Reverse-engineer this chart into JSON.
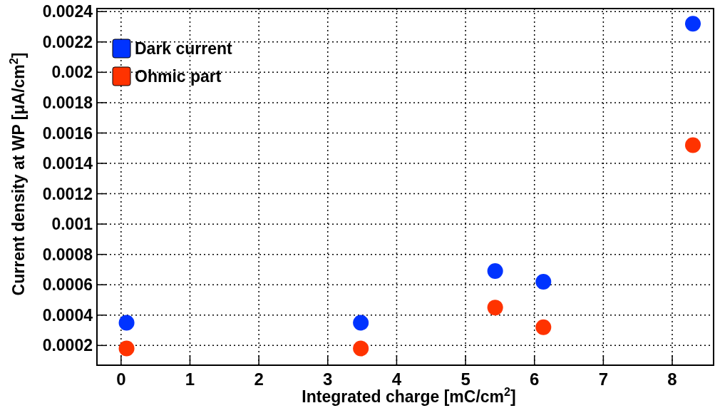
{
  "chart_data": {
    "type": "scatter",
    "xlabel": "Integrated charge [mC/cm$^{2}$]",
    "ylabel": "Current density at WP [μA/cm$^{2}$]",
    "xlim": [
      -0.35,
      8.6
    ],
    "xticks": [
      0,
      1,
      2,
      3,
      4,
      5,
      6,
      7,
      8
    ],
    "ylim": [
      7e-05,
      0.00242
    ],
    "yticks": [
      0.0002,
      0.0004,
      0.0006,
      0.0008,
      0.001,
      0.0012,
      0.0014,
      0.0016,
      0.0018,
      0.002,
      0.0022,
      0.0024
    ],
    "grid": true,
    "legend": "top left",
    "marker": "circle",
    "series": [
      {
        "name": "Dark current",
        "color": "#0033ff",
        "x": [
          0.08,
          3.48,
          5.43,
          6.13,
          8.3
        ],
        "values": [
          0.00035,
          0.00035,
          0.00069,
          0.00062,
          0.00232
        ]
      },
      {
        "name": "Ohmic part",
        "color": "#ff3300",
        "x": [
          0.08,
          3.48,
          5.43,
          6.13,
          8.3
        ],
        "values": [
          0.00018,
          0.00018,
          0.00045,
          0.00032,
          0.00152
        ]
      }
    ]
  }
}
